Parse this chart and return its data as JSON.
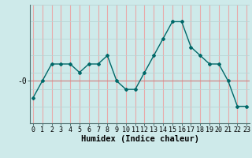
{
  "x": [
    0,
    1,
    2,
    3,
    4,
    5,
    6,
    7,
    8,
    9,
    10,
    11,
    12,
    13,
    14,
    15,
    16,
    17,
    18,
    19,
    20,
    21,
    22,
    23
  ],
  "y": [
    -2,
    0,
    2,
    2,
    2,
    1,
    2,
    2,
    3,
    0,
    -1,
    -1,
    1,
    3,
    5,
    7,
    7,
    4,
    3,
    2,
    2,
    0,
    -3,
    -3
  ],
  "line_color": "#006868",
  "marker_color": "#006868",
  "background_color": "#ceeaea",
  "vgrid_color": "#e8aaaa",
  "hgrid_color": "#b8d4d4",
  "xlabel": "Humidex (Indice chaleur)",
  "ylabel": "-0",
  "zero_line_color": "#d08888",
  "xlabel_fontsize": 7.5,
  "ylabel_fontsize": 7,
  "tick_fontsize": 6,
  "xlim": [
    0,
    23
  ],
  "ylim": [
    -5,
    9
  ]
}
